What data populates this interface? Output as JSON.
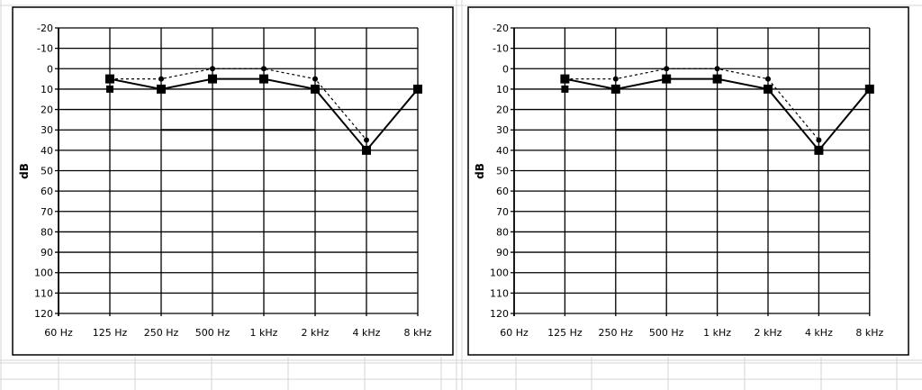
{
  "chart_data": [
    {
      "type": "line",
      "ylabel": "dB",
      "categories": [
        "60 Hz",
        "125 Hz",
        "250 Hz",
        "500 Hz",
        "1 kHz",
        "2 kHz",
        "4 kHz",
        "8 kHz"
      ],
      "yticks": [
        "-20",
        "-10",
        "0",
        "10",
        "20",
        "30",
        "40",
        "50",
        "60",
        "70",
        "80",
        "90",
        "100",
        "110",
        "120"
      ],
      "ylim": [
        -20,
        120
      ],
      "y_inverted": true,
      "grid": true,
      "series": [
        {
          "style": "solid-square",
          "x": [
            "125 Hz",
            "250 Hz",
            "500 Hz",
            "1 kHz",
            "2 kHz",
            "4 kHz",
            "8 kHz"
          ],
          "values": [
            5,
            10,
            5,
            5,
            10,
            40,
            10
          ]
        },
        {
          "style": "dotted-dot",
          "x": [
            "125 Hz",
            "250 Hz",
            "500 Hz",
            "1 kHz",
            "2 kHz",
            "4 kHz"
          ],
          "values": [
            5,
            5,
            0,
            0,
            5,
            35
          ]
        },
        {
          "style": "square-marker-only",
          "x": [
            "125 Hz"
          ],
          "values": [
            10
          ]
        },
        {
          "style": "flat-line",
          "x": [
            "250 Hz",
            "2 kHz"
          ],
          "values": [
            30,
            30
          ]
        }
      ]
    },
    {
      "type": "line",
      "ylabel": "dB",
      "categories": [
        "60 Hz",
        "125 Hz",
        "250 Hz",
        "500 Hz",
        "1 kHz",
        "2 kHz",
        "4 kHz",
        "8 kHz"
      ],
      "yticks": [
        "-20",
        "-10",
        "0",
        "10",
        "20",
        "30",
        "40",
        "50",
        "60",
        "70",
        "80",
        "90",
        "100",
        "110",
        "120"
      ],
      "ylim": [
        -20,
        120
      ],
      "y_inverted": true,
      "grid": true,
      "series": [
        {
          "style": "solid-square",
          "x": [
            "125 Hz",
            "250 Hz",
            "500 Hz",
            "1 kHz",
            "2 kHz",
            "4 kHz",
            "8 kHz"
          ],
          "values": [
            5,
            10,
            5,
            5,
            10,
            40,
            10
          ]
        },
        {
          "style": "dotted-dot",
          "x": [
            "125 Hz",
            "250 Hz",
            "500 Hz",
            "1 kHz",
            "2 kHz",
            "4 kHz"
          ],
          "values": [
            5,
            5,
            0,
            0,
            5,
            35
          ]
        },
        {
          "style": "square-marker-only",
          "x": [
            "125 Hz"
          ],
          "values": [
            10
          ]
        },
        {
          "style": "flat-line",
          "x": [
            "250 Hz",
            "2 kHz"
          ],
          "values": [
            30,
            30
          ]
        }
      ]
    }
  ],
  "colors": {
    "line": "#000000",
    "grid": "#000000",
    "sheet_grid": "#d4d4d4",
    "panel_border": "#000000"
  }
}
